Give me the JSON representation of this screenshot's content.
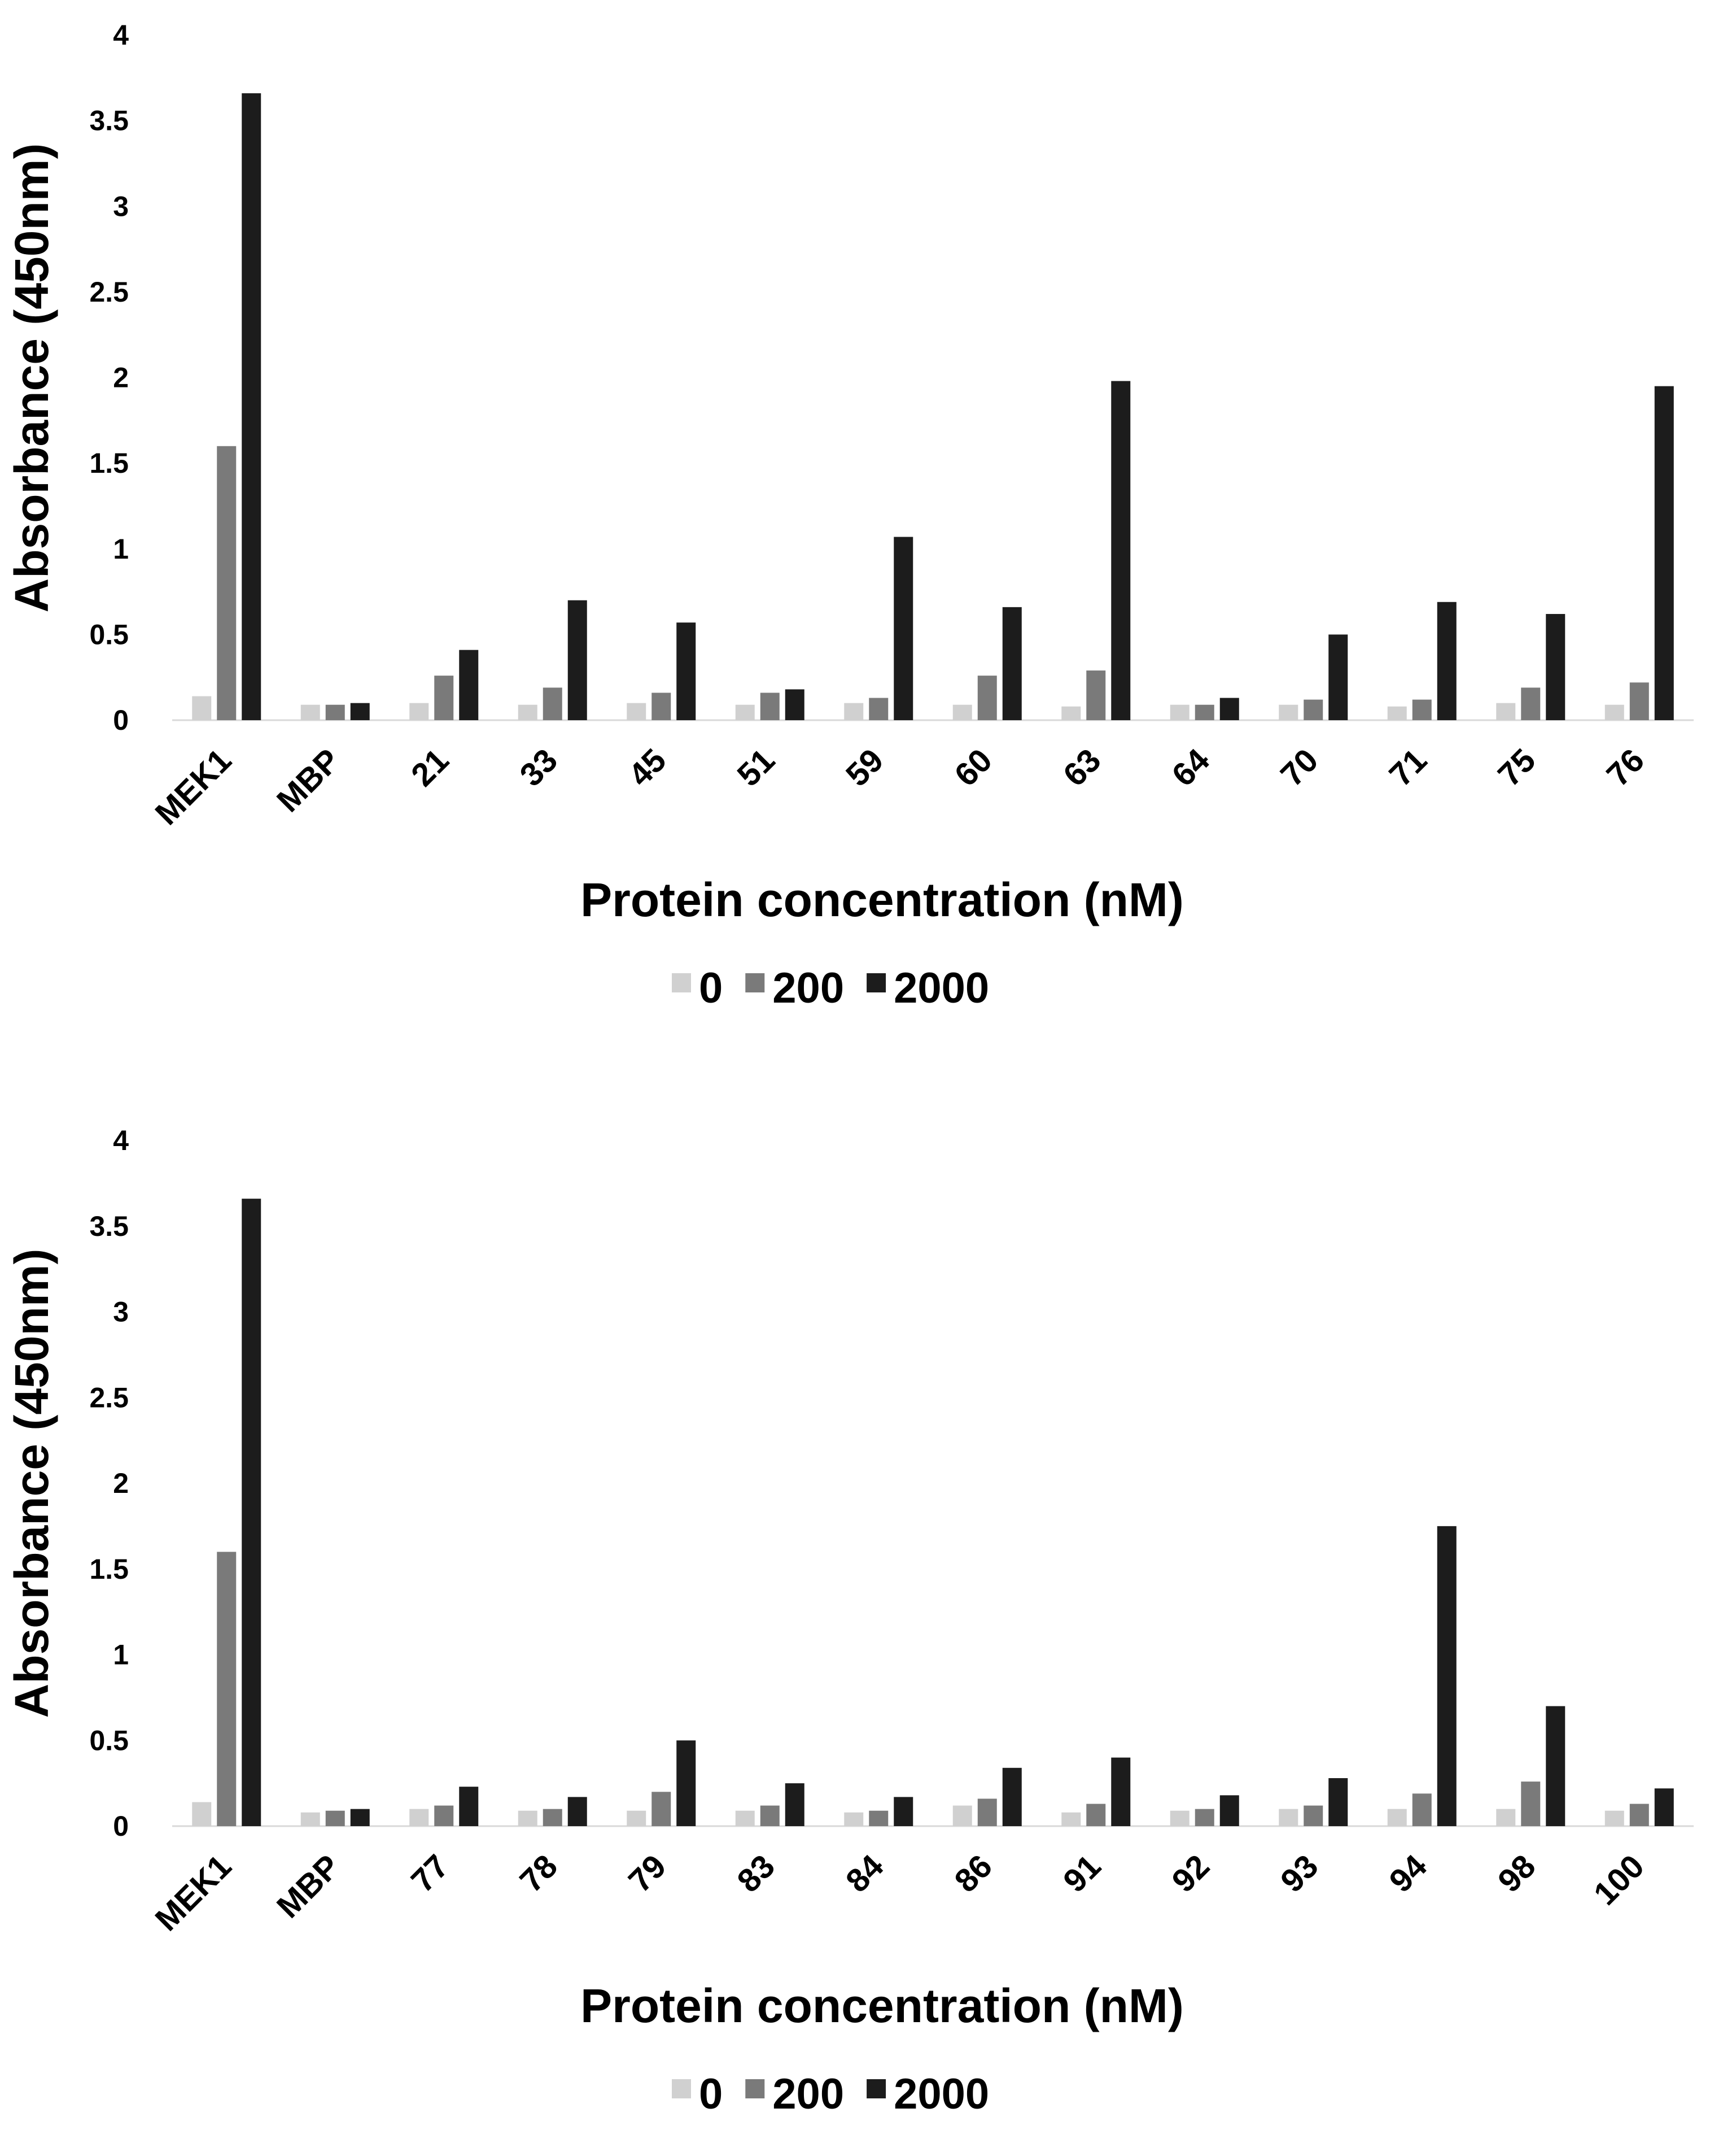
{
  "chart_data": [
    {
      "type": "bar",
      "title": "",
      "xlabel": "Protein concentration (nM)",
      "ylabel": "Absorbance (450nm)",
      "ylim": [
        0,
        4
      ],
      "yticks": [
        "0",
        "0.5",
        "1",
        "1.5",
        "2",
        "2.5",
        "3",
        "3.5",
        "4"
      ],
      "grid": false,
      "legend_position": "bottom",
      "categories": [
        "MEK1",
        "MBP",
        "21",
        "33",
        "45",
        "51",
        "59",
        "60",
        "63",
        "64",
        "70",
        "71",
        "75",
        "76"
      ],
      "series": [
        {
          "name": "0",
          "color": "#d0d0d0",
          "values": [
            0.14,
            0.09,
            0.1,
            0.09,
            0.1,
            0.09,
            0.1,
            0.09,
            0.08,
            0.09,
            0.09,
            0.08,
            0.1,
            0.09
          ]
        },
        {
          "name": "200",
          "color": "#7a7a7a",
          "values": [
            1.6,
            0.09,
            0.26,
            0.19,
            0.16,
            0.16,
            0.13,
            0.26,
            0.29,
            0.09,
            0.12,
            0.12,
            0.19,
            0.22
          ]
        },
        {
          "name": "2000",
          "color": "#1c1c1c",
          "values": [
            3.66,
            0.1,
            0.41,
            0.7,
            0.57,
            0.18,
            1.07,
            0.66,
            1.98,
            0.13,
            0.5,
            0.69,
            0.62,
            1.95
          ]
        }
      ]
    },
    {
      "type": "bar",
      "title": "",
      "xlabel": "Protein concentration (nM)",
      "ylabel": "Absorbance (450nm)",
      "ylim": [
        0,
        4
      ],
      "yticks": [
        "0",
        "0.5",
        "1",
        "1.5",
        "2",
        "2.5",
        "3",
        "3.5",
        "4"
      ],
      "grid": false,
      "legend_position": "bottom",
      "categories": [
        "MEK1",
        "MBP",
        "77",
        "78",
        "79",
        "83",
        "84",
        "86",
        "91",
        "92",
        "93",
        "94",
        "98",
        "100"
      ],
      "series": [
        {
          "name": "0",
          "color": "#d0d0d0",
          "values": [
            0.14,
            0.08,
            0.1,
            0.09,
            0.09,
            0.09,
            0.08,
            0.12,
            0.08,
            0.09,
            0.1,
            0.1,
            0.1,
            0.09
          ]
        },
        {
          "name": "200",
          "color": "#7a7a7a",
          "values": [
            1.6,
            0.09,
            0.12,
            0.1,
            0.2,
            0.12,
            0.09,
            0.16,
            0.13,
            0.1,
            0.12,
            0.19,
            0.26,
            0.13
          ]
        },
        {
          "name": "2000",
          "color": "#1c1c1c",
          "values": [
            3.66,
            0.1,
            0.23,
            0.17,
            0.5,
            0.25,
            0.17,
            0.34,
            0.4,
            0.18,
            0.28,
            1.75,
            0.7,
            0.22
          ]
        }
      ]
    }
  ]
}
